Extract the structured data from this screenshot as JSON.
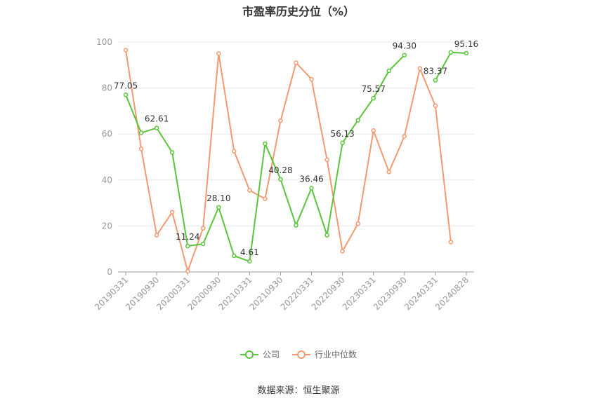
{
  "colors": {
    "company": "#5ac53c",
    "industry": "#f39a72",
    "grid": "#e8e8e8",
    "axis": "#999999"
  },
  "footer": {
    "source": "数据来源：恒生聚源"
  },
  "chart_data": {
    "type": "line",
    "title": "市盈率历史分位（%）",
    "ylim": [
      0,
      100
    ],
    "yticks": [
      0,
      20,
      40,
      60,
      80,
      100
    ],
    "grid": true,
    "legend_position": "bottom",
    "x": [
      "20190331",
      "20190630",
      "20190930",
      "20191231",
      "20200331",
      "20200630",
      "20200930",
      "20201231",
      "20210331",
      "20210630",
      "20210930",
      "20211231",
      "20220331",
      "20220630",
      "20220930",
      "20221231",
      "20230331",
      "20230630",
      "20230930",
      "20231231",
      "20240331",
      "20240630",
      "20240828"
    ],
    "x_tick_labels": [
      "20190331",
      "20190930",
      "20200331",
      "20200930",
      "20210331",
      "20210930",
      "20220331",
      "20220930",
      "20230331",
      "20230930",
      "20240331",
      "20240828"
    ],
    "x_tick_indices": [
      0,
      2,
      4,
      6,
      8,
      10,
      12,
      14,
      16,
      18,
      20,
      22
    ],
    "series": [
      {
        "name": "公司",
        "color_key": "company",
        "values": [
          77.05,
          60.5,
          62.61,
          52.0,
          11.24,
          12.2,
          28.1,
          7.0,
          4.61,
          55.8,
          40.28,
          20.3,
          36.46,
          16.0,
          56.13,
          66.0,
          75.57,
          87.5,
          94.3,
          null,
          83.37,
          95.5,
          95.16
        ],
        "labels": [
          "77.05",
          null,
          "62.61",
          null,
          "11.24",
          null,
          "28.10",
          null,
          "4.61",
          null,
          "40.28",
          null,
          "36.46",
          null,
          "56.13",
          null,
          "75.57",
          null,
          "94.30",
          null,
          "83.37",
          null,
          "95.16"
        ]
      },
      {
        "name": "行业中位数",
        "color_key": "industry",
        "values": [
          96.5,
          53.5,
          16.0,
          26.0,
          0.3,
          19.0,
          95.0,
          52.5,
          35.5,
          31.8,
          65.8,
          91.0,
          83.8,
          48.8,
          9.0,
          21.0,
          61.5,
          43.5,
          59.0,
          88.5,
          72.3,
          13.0,
          null
        ],
        "labels": []
      }
    ]
  }
}
